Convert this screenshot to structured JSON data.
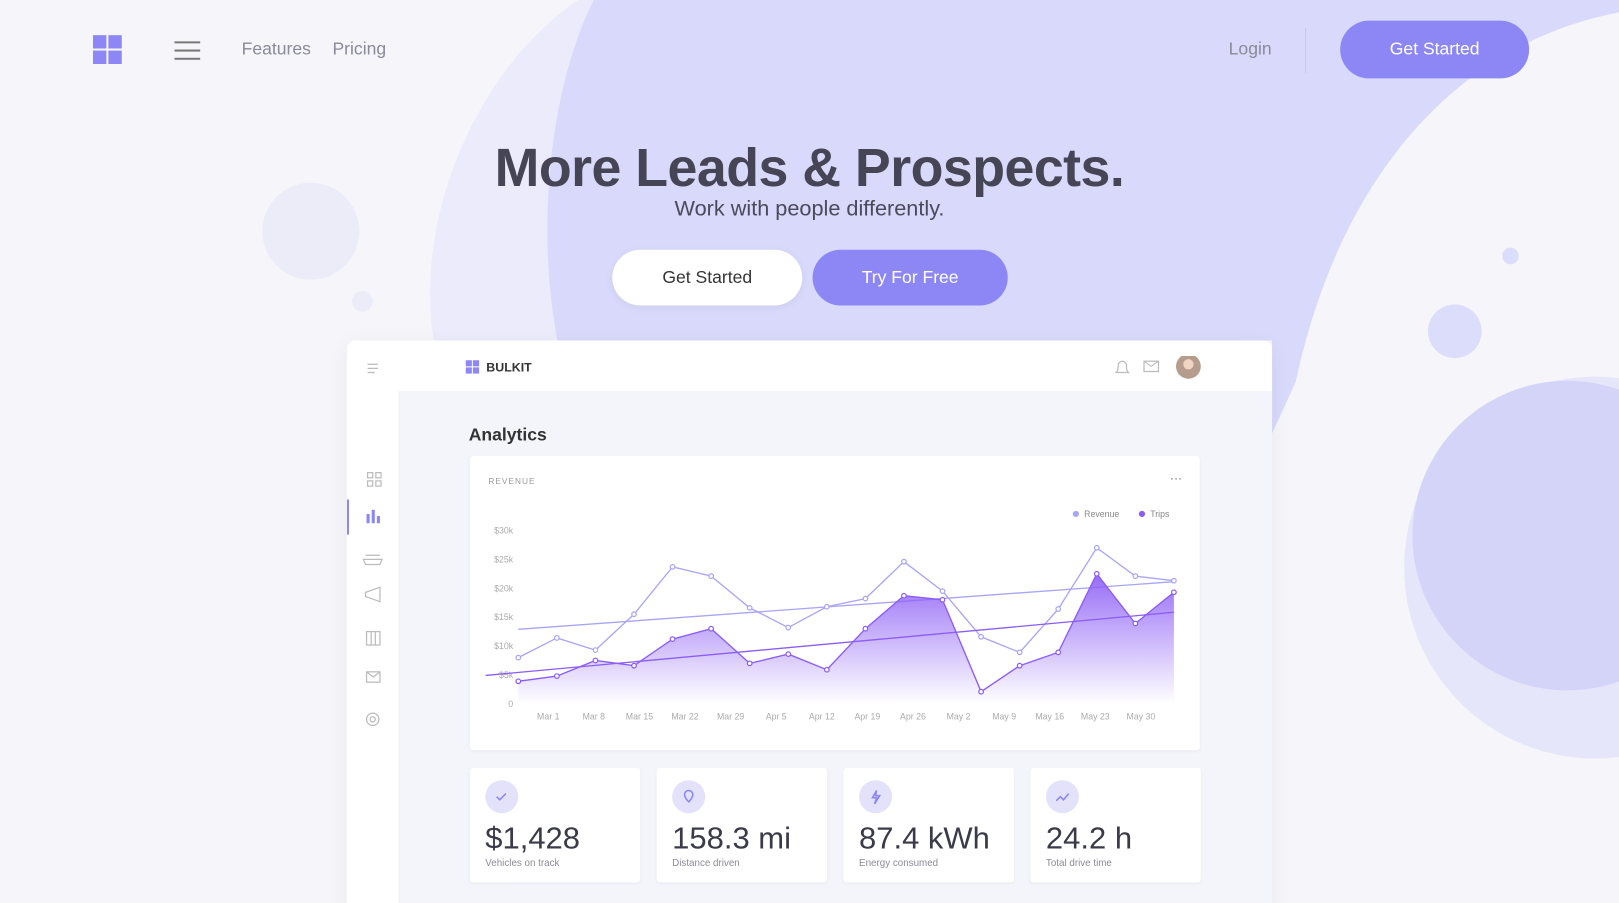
{
  "nav": {
    "links": [
      "Features",
      "Pricing"
    ],
    "login": "Login",
    "cta": "Get Started"
  },
  "hero": {
    "title": "More Leads & Prospects.",
    "subtitle": "Work with people differently.",
    "buttons": [
      "Get Started",
      "Try For Free"
    ]
  },
  "dashboard": {
    "brand": "BULKIT",
    "heading": "Analytics"
  },
  "chart_data": {
    "type": "line",
    "title": "REVENUE",
    "xtick_labels": [
      "Mar 1",
      "Mar 8",
      "Mar 15",
      "Mar 22",
      "Mar 29",
      "Apr 5",
      "Apr 12",
      "Apr 19",
      "Apr 26",
      "May 2",
      "May 9",
      "May 16",
      "May 23",
      "May 30"
    ],
    "series": [
      {
        "name": "Revenue",
        "color": "#a9a5f5",
        "fill": false,
        "values": [
          8000,
          11400,
          9300,
          15500,
          23700,
          22100,
          16600,
          13200,
          16800,
          18200,
          24600,
          19500,
          11600,
          8900,
          16400,
          27000,
          22100,
          21300
        ]
      },
      {
        "name": "Trips",
        "color": "#8b5cf6",
        "fill": true,
        "values": [
          3900,
          4800,
          7500,
          6600,
          11200,
          13000,
          7000,
          8600,
          5900,
          13000,
          18700,
          18000,
          2100,
          6600,
          8900,
          22500,
          13900,
          19300
        ]
      }
    ],
    "trendline": true,
    "ylim": [
      0,
      30000
    ],
    "yticks": [
      0,
      {
        "value": 5000,
        "label": "$5k"
      },
      {
        "value": 10000,
        "label": "$10k"
      },
      {
        "value": 15000,
        "label": "$15k"
      },
      {
        "value": 20000,
        "label": "$20k"
      },
      {
        "value": 25000,
        "label": "$25k"
      },
      {
        "value": 30000,
        "label": "$30k"
      }
    ]
  },
  "stats": [
    {
      "value": "$1,428",
      "label": "Vehicles on track"
    },
    {
      "value": "158.3 mi",
      "label": "Distance driven"
    },
    {
      "value": "87.4 kWh",
      "label": "Energy consumed"
    },
    {
      "value": "24.2 h",
      "label": "Total drive time"
    }
  ]
}
